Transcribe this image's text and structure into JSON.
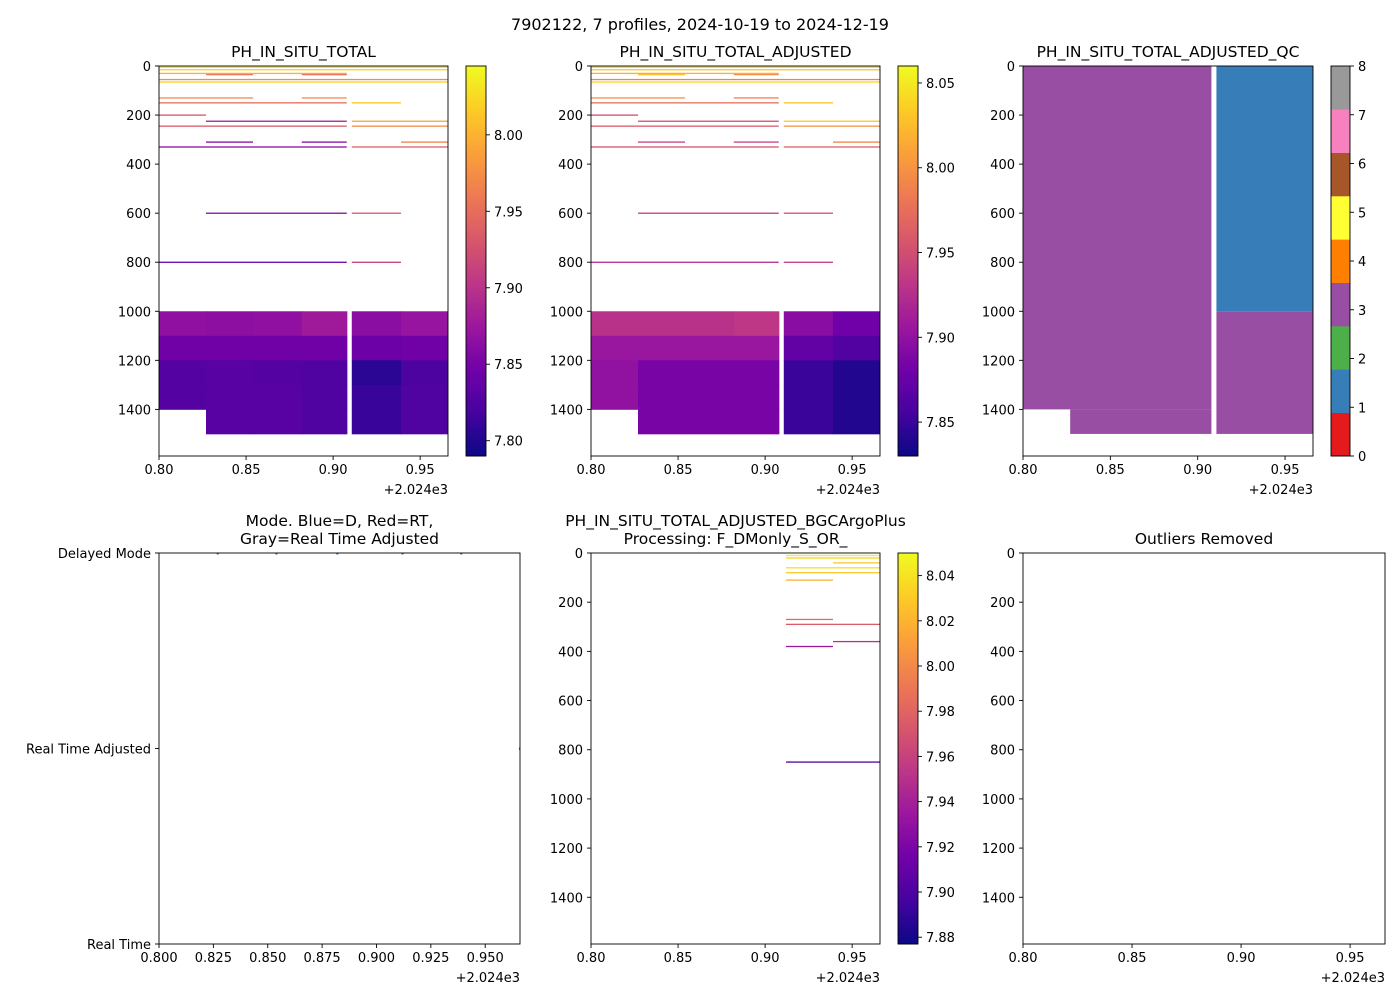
{
  "figure": {
    "suptitle": "7902122, 7 profiles, 2024-10-19 to 2024-12-19",
    "x_offset_label": "+2.024e3"
  },
  "chart_data": [
    {
      "id": "p1",
      "type": "heatmap",
      "title": "PH_IN_SITU_TOTAL",
      "xlim": [
        0.8,
        0.966
      ],
      "ylim": [
        1590,
        0
      ],
      "xticks": [
        0.8,
        0.85,
        0.9,
        0.95
      ],
      "xtick_labels": [
        "0.80",
        "0.85",
        "0.90",
        "0.95"
      ],
      "yticks": [
        0,
        200,
        400,
        600,
        800,
        1000,
        1200,
        1400
      ],
      "ytick_labels": [
        "0",
        "200",
        "400",
        "600",
        "800",
        "1000",
        "1200",
        "1400"
      ],
      "colormap": "plasma",
      "colorbar": {
        "vmin": 7.79,
        "vmax": 8.045,
        "ticks": [
          7.8,
          7.85,
          7.9,
          7.95,
          8.0
        ],
        "tick_labels": [
          "7.80",
          "7.85",
          "7.90",
          "7.95",
          "8.00"
        ]
      },
      "columns": [
        0.8,
        0.827,
        0.854,
        0.882,
        0.909,
        0.939,
        0.966
      ],
      "deep_layers": [
        {
          "top": 1000,
          "bottom": 1100,
          "values": [
            7.866,
            7.865,
            7.866,
            7.878,
            7.863,
            7.871
          ]
        },
        {
          "top": 1100,
          "bottom": 1200,
          "values": [
            7.845,
            7.845,
            7.845,
            7.845,
            7.842,
            7.845
          ]
        },
        {
          "top": 1200,
          "bottom": 1300,
          "values": [
            7.828,
            7.83,
            7.828,
            7.825,
            7.805,
            7.822
          ]
        },
        {
          "top": 1300,
          "bottom": 1400,
          "values": [
            7.828,
            7.83,
            7.83,
            7.825,
            7.812,
            7.825
          ]
        },
        {
          "top": 1400,
          "bottom": 1500,
          "values": [
            null,
            7.83,
            7.83,
            7.825,
            7.812,
            7.825
          ]
        }
      ],
      "profile_lines": [
        {
          "depth": 5,
          "x0": 0.8,
          "x1": 0.966,
          "value": 8.03
        },
        {
          "depth": 15,
          "x0": 0.8,
          "x1": 0.966,
          "value": 8.02
        },
        {
          "depth": 30,
          "x0": 0.8,
          "x1": 0.909,
          "value": 8.0
        },
        {
          "depth": 35,
          "x0": 0.827,
          "x1": 0.854,
          "value": 7.96
        },
        {
          "depth": 35,
          "x0": 0.882,
          "x1": 0.909,
          "value": 7.955
        },
        {
          "depth": 55,
          "x0": 0.8,
          "x1": 0.966,
          "value": 7.975
        },
        {
          "depth": 65,
          "x0": 0.8,
          "x1": 0.966,
          "value": 8.02
        },
        {
          "depth": 130,
          "x0": 0.8,
          "x1": 0.854,
          "value": 7.975
        },
        {
          "depth": 130,
          "x0": 0.882,
          "x1": 0.909,
          "value": 7.975
        },
        {
          "depth": 150,
          "x0": 0.8,
          "x1": 0.909,
          "value": 7.95
        },
        {
          "depth": 150,
          "x0": 0.909,
          "x1": 0.939,
          "value": 8.015
        },
        {
          "depth": 200,
          "x0": 0.8,
          "x1": 0.827,
          "value": 7.93
        },
        {
          "depth": 225,
          "x0": 0.827,
          "x1": 0.909,
          "value": 7.88
        },
        {
          "depth": 225,
          "x0": 0.909,
          "x1": 0.966,
          "value": 7.99
        },
        {
          "depth": 245,
          "x0": 0.8,
          "x1": 0.909,
          "value": 7.935
        },
        {
          "depth": 245,
          "x0": 0.909,
          "x1": 0.966,
          "value": 7.975
        },
        {
          "depth": 310,
          "x0": 0.827,
          "x1": 0.854,
          "value": 7.86
        },
        {
          "depth": 310,
          "x0": 0.882,
          "x1": 0.909,
          "value": 7.86
        },
        {
          "depth": 310,
          "x0": 0.939,
          "x1": 0.966,
          "value": 7.965
        },
        {
          "depth": 330,
          "x0": 0.8,
          "x1": 0.909,
          "value": 7.865
        },
        {
          "depth": 330,
          "x0": 0.909,
          "x1": 0.966,
          "value": 7.94
        },
        {
          "depth": 600,
          "x0": 0.827,
          "x1": 0.909,
          "value": 7.86
        },
        {
          "depth": 600,
          "x0": 0.909,
          "x1": 0.939,
          "value": 7.93
        },
        {
          "depth": 800,
          "x0": 0.8,
          "x1": 0.909,
          "value": 7.84
        },
        {
          "depth": 800,
          "x0": 0.909,
          "x1": 0.939,
          "value": 7.91
        }
      ]
    },
    {
      "id": "p2",
      "type": "heatmap",
      "title": "PH_IN_SITU_TOTAL_ADJUSTED",
      "xlim": [
        0.8,
        0.966
      ],
      "ylim": [
        1590,
        0
      ],
      "xticks": [
        0.8,
        0.85,
        0.9,
        0.95
      ],
      "xtick_labels": [
        "0.80",
        "0.85",
        "0.90",
        "0.95"
      ],
      "yticks": [
        0,
        200,
        400,
        600,
        800,
        1000,
        1200,
        1400
      ],
      "ytick_labels": [
        "0",
        "200",
        "400",
        "600",
        "800",
        "1000",
        "1200",
        "1400"
      ],
      "colormap": "plasma",
      "colorbar": {
        "vmin": 7.83,
        "vmax": 8.06,
        "ticks": [
          7.85,
          7.9,
          7.95,
          8.0,
          8.05
        ],
        "tick_labels": [
          "7.85",
          "7.90",
          "7.95",
          "8.00",
          "8.05"
        ]
      },
      "columns": [
        0.8,
        0.827,
        0.854,
        0.882,
        0.909,
        0.939,
        0.966
      ],
      "deep_layers": [
        {
          "top": 1000,
          "bottom": 1100,
          "values": [
            7.928,
            7.928,
            7.928,
            7.932,
            7.895,
            7.88
          ]
        },
        {
          "top": 1100,
          "bottom": 1200,
          "values": [
            7.905,
            7.905,
            7.905,
            7.905,
            7.872,
            7.862
          ]
        },
        {
          "top": 1200,
          "bottom": 1300,
          "values": [
            7.9,
            7.885,
            7.885,
            7.885,
            7.85,
            7.84
          ]
        },
        {
          "top": 1300,
          "bottom": 1400,
          "values": [
            7.9,
            7.885,
            7.885,
            7.885,
            7.85,
            7.84
          ]
        },
        {
          "top": 1400,
          "bottom": 1500,
          "values": [
            null,
            7.885,
            7.885,
            7.885,
            7.85,
            7.84
          ]
        }
      ],
      "profile_lines": [
        {
          "depth": 5,
          "x0": 0.8,
          "x1": 0.966,
          "value": 8.04
        },
        {
          "depth": 15,
          "x0": 0.8,
          "x1": 0.966,
          "value": 8.03
        },
        {
          "depth": 30,
          "x0": 0.8,
          "x1": 0.909,
          "value": 8.02
        },
        {
          "depth": 35,
          "x0": 0.827,
          "x1": 0.854,
          "value": 8.03
        },
        {
          "depth": 35,
          "x0": 0.882,
          "x1": 0.909,
          "value": 8.0
        },
        {
          "depth": 55,
          "x0": 0.8,
          "x1": 0.966,
          "value": 7.99
        },
        {
          "depth": 65,
          "x0": 0.8,
          "x1": 0.966,
          "value": 8.04
        },
        {
          "depth": 130,
          "x0": 0.8,
          "x1": 0.854,
          "value": 8.0
        },
        {
          "depth": 130,
          "x0": 0.882,
          "x1": 0.909,
          "value": 7.99
        },
        {
          "depth": 150,
          "x0": 0.8,
          "x1": 0.909,
          "value": 7.975
        },
        {
          "depth": 150,
          "x0": 0.909,
          "x1": 0.939,
          "value": 8.03
        },
        {
          "depth": 200,
          "x0": 0.8,
          "x1": 0.827,
          "value": 7.95
        },
        {
          "depth": 225,
          "x0": 0.827,
          "x1": 0.909,
          "value": 7.95
        },
        {
          "depth": 225,
          "x0": 0.909,
          "x1": 0.966,
          "value": 8.03
        },
        {
          "depth": 245,
          "x0": 0.8,
          "x1": 0.909,
          "value": 7.96
        },
        {
          "depth": 245,
          "x0": 0.909,
          "x1": 0.966,
          "value": 8.0
        },
        {
          "depth": 310,
          "x0": 0.827,
          "x1": 0.854,
          "value": 7.94
        },
        {
          "depth": 310,
          "x0": 0.882,
          "x1": 0.909,
          "value": 7.94
        },
        {
          "depth": 310,
          "x0": 0.939,
          "x1": 0.966,
          "value": 7.99
        },
        {
          "depth": 330,
          "x0": 0.8,
          "x1": 0.909,
          "value": 7.955
        },
        {
          "depth": 330,
          "x0": 0.909,
          "x1": 0.966,
          "value": 7.965
        },
        {
          "depth": 600,
          "x0": 0.827,
          "x1": 0.909,
          "value": 7.935
        },
        {
          "depth": 600,
          "x0": 0.909,
          "x1": 0.939,
          "value": 7.95
        },
        {
          "depth": 800,
          "x0": 0.8,
          "x1": 0.909,
          "value": 7.925
        },
        {
          "depth": 800,
          "x0": 0.909,
          "x1": 0.939,
          "value": 7.935
        }
      ]
    },
    {
      "id": "p3",
      "type": "heatmap",
      "title": "PH_IN_SITU_TOTAL_ADJUSTED_QC",
      "xlim": [
        0.8,
        0.966
      ],
      "ylim": [
        1590,
        0
      ],
      "xticks": [
        0.8,
        0.85,
        0.9,
        0.95
      ],
      "xtick_labels": [
        "0.80",
        "0.85",
        "0.90",
        "0.95"
      ],
      "yticks": [
        0,
        200,
        400,
        600,
        800,
        1000,
        1200,
        1400
      ],
      "ytick_labels": [
        "0",
        "200",
        "400",
        "600",
        "800",
        "1000",
        "1200",
        "1400"
      ],
      "colorbar": {
        "categorical": true,
        "vmin": 0,
        "vmax": 8,
        "ticks": [
          0,
          1,
          2,
          3,
          4,
          5,
          6,
          7,
          8
        ],
        "tick_labels": [
          "0",
          "1",
          "2",
          "3",
          "4",
          "5",
          "6",
          "7",
          "8"
        ],
        "colors": [
          "#e41a1c",
          "#377eb8",
          "#4daf4a",
          "#984ea3",
          "#ff7f00",
          "#ffff33",
          "#a65628",
          "#f781bf",
          "#999999"
        ]
      },
      "regions": [
        {
          "x0": 0.8,
          "x1": 0.909,
          "top": 0,
          "bottom": 1400,
          "qc": 3
        },
        {
          "x0": 0.827,
          "x1": 0.909,
          "top": 1400,
          "bottom": 1500,
          "qc": 3
        },
        {
          "x0": 0.909,
          "x1": 0.966,
          "top": 0,
          "bottom": 1000,
          "qc": 1
        },
        {
          "x0": 0.909,
          "x1": 0.966,
          "top": 1000,
          "bottom": 1500,
          "qc": 3
        }
      ]
    },
    {
      "id": "p4",
      "type": "scatter",
      "title": "Mode. Blue=D, Red=RT,\nGray=Real Time Adjusted",
      "xlim": [
        0.8,
        0.966
      ],
      "ylim": [
        0,
        2
      ],
      "xticks": [
        0.8,
        0.825,
        0.85,
        0.875,
        0.9,
        0.925,
        0.95
      ],
      "xtick_labels": [
        "0.800",
        "0.825",
        "0.850",
        "0.875",
        "0.900",
        "0.925",
        "0.950"
      ],
      "yticks": [
        0,
        1,
        2
      ],
      "ytick_labels": [
        "Real Time",
        "Real Time Adjusted",
        "Delayed Mode"
      ],
      "points": [
        {
          "x": 0.827,
          "y": 2,
          "color": "#1f77b4"
        },
        {
          "x": 0.854,
          "y": 2,
          "color": "#1f77b4"
        },
        {
          "x": 0.882,
          "y": 2,
          "color": "#1f77b4"
        },
        {
          "x": 0.912,
          "y": 2,
          "color": "#1f77b4"
        },
        {
          "x": 0.939,
          "y": 2,
          "color": "#1f77b4"
        },
        {
          "x": 0.966,
          "y": 1,
          "color": "#1f77b4"
        }
      ]
    },
    {
      "id": "p5",
      "type": "heatmap",
      "title": "PH_IN_SITU_TOTAL_ADJUSTED_BGCArgoPlus\nProcessing: F_DMonly_S_OR_",
      "xlim": [
        0.8,
        0.966
      ],
      "ylim": [
        1590,
        0
      ],
      "xticks": [
        0.8,
        0.85,
        0.9,
        0.95
      ],
      "xtick_labels": [
        "0.80",
        "0.85",
        "0.90",
        "0.95"
      ],
      "yticks": [
        0,
        200,
        400,
        600,
        800,
        1000,
        1200,
        1400
      ],
      "ytick_labels": [
        "0",
        "200",
        "400",
        "600",
        "800",
        "1000",
        "1200",
        "1400"
      ],
      "colormap": "plasma",
      "colorbar": {
        "vmin": 7.877,
        "vmax": 8.05,
        "ticks": [
          7.88,
          7.9,
          7.92,
          7.94,
          7.96,
          7.98,
          8.0,
          8.02,
          8.04
        ],
        "tick_labels": [
          "7.88",
          "7.90",
          "7.92",
          "7.94",
          "7.96",
          "7.98",
          "8.00",
          "8.02",
          "8.04"
        ]
      },
      "deep_layers": [],
      "profile_lines": [
        {
          "depth": 10,
          "x0": 0.912,
          "x1": 0.966,
          "value": 8.045
        },
        {
          "depth": 20,
          "x0": 0.912,
          "x1": 0.966,
          "value": 8.035
        },
        {
          "depth": 40,
          "x0": 0.939,
          "x1": 0.966,
          "value": 8.03
        },
        {
          "depth": 60,
          "x0": 0.912,
          "x1": 0.966,
          "value": 8.04
        },
        {
          "depth": 80,
          "x0": 0.912,
          "x1": 0.966,
          "value": 8.03
        },
        {
          "depth": 110,
          "x0": 0.912,
          "x1": 0.939,
          "value": 8.02
        },
        {
          "depth": 270,
          "x0": 0.912,
          "x1": 0.939,
          "value": 7.985
        },
        {
          "depth": 290,
          "x0": 0.912,
          "x1": 0.966,
          "value": 7.975
        },
        {
          "depth": 360,
          "x0": 0.939,
          "x1": 0.966,
          "value": 7.95
        },
        {
          "depth": 380,
          "x0": 0.912,
          "x1": 0.939,
          "value": 7.935
        },
        {
          "depth": 850,
          "x0": 0.912,
          "x1": 0.966,
          "value": 7.9
        }
      ]
    },
    {
      "id": "p6",
      "type": "heatmap",
      "title": "Outliers Removed",
      "xlim": [
        0.8,
        0.966
      ],
      "ylim": [
        1590,
        0
      ],
      "xticks": [
        0.8,
        0.85,
        0.9,
        0.95
      ],
      "xtick_labels": [
        "0.80",
        "0.85",
        "0.90",
        "0.95"
      ],
      "yticks": [
        0,
        200,
        400,
        600,
        800,
        1000,
        1200,
        1400
      ],
      "ytick_labels": [
        "0",
        "200",
        "400",
        "600",
        "800",
        "1000",
        "1200",
        "1400"
      ],
      "deep_layers": [],
      "profile_lines": []
    }
  ]
}
